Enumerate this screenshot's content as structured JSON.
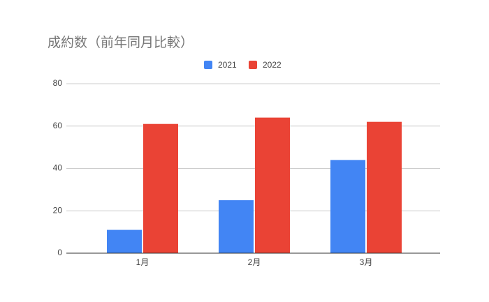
{
  "chart_data": {
    "type": "bar",
    "title": "成約数（前年同月比較）",
    "categories": [
      "1月",
      "2月",
      "3月"
    ],
    "series": [
      {
        "name": "2021",
        "color": "#4285f4",
        "values": [
          11,
          25,
          44
        ]
      },
      {
        "name": "2022",
        "color": "#ea4335",
        "values": [
          61,
          64,
          62
        ]
      }
    ],
    "ylim": [
      0,
      80
    ],
    "yticks": [
      0,
      20,
      40,
      60,
      80
    ],
    "grid": true,
    "legend": "top"
  }
}
